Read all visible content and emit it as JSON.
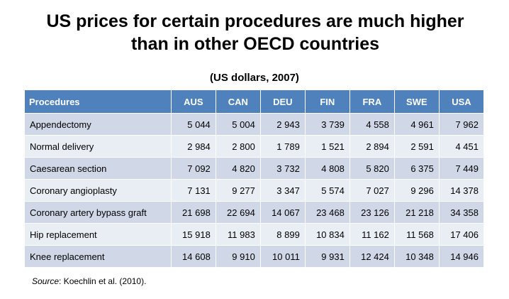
{
  "header": {
    "title": "US prices for certain procedures are much higher than in other OECD countries",
    "subtitle": "(US dollars, 2007)"
  },
  "table": {
    "columns": [
      "Procedures",
      "AUS",
      "CAN",
      "DEU",
      "FIN",
      "FRA",
      "SWE",
      "USA"
    ],
    "rows": [
      [
        "Appendectomy",
        "5 044",
        "5 004",
        "2 943",
        "3 739",
        "4 558",
        "4 961",
        "7 962"
      ],
      [
        "Normal delivery",
        "2 984",
        "2 800",
        "1 789",
        "1 521",
        "2 894",
        "2 591",
        "4 451"
      ],
      [
        "Caesarean section",
        "7 092",
        "4 820",
        "3 732",
        "4 808",
        "5 820",
        "6 375",
        "7 449"
      ],
      [
        "Coronary angioplasty",
        "7 131",
        "9 277",
        "3 347",
        "5 574",
        "7 027",
        "9 296",
        "14 378"
      ],
      [
        "Coronary artery bypass graft",
        "21 698",
        "22 694",
        "14 067",
        "23 468",
        "23 126",
        "21 218",
        "34 358"
      ],
      [
        "Hip replacement",
        "15 918",
        "11 983",
        "8 899",
        "10 834",
        "11 162",
        "11 568",
        "17 406"
      ],
      [
        "Knee replacement",
        "14 608",
        "9 910",
        "10 011",
        "9 931",
        "12 424",
        "10 348",
        "14 946"
      ]
    ]
  },
  "source": {
    "label": "Source",
    "text": ": Koechlin et al. (2010)."
  }
}
